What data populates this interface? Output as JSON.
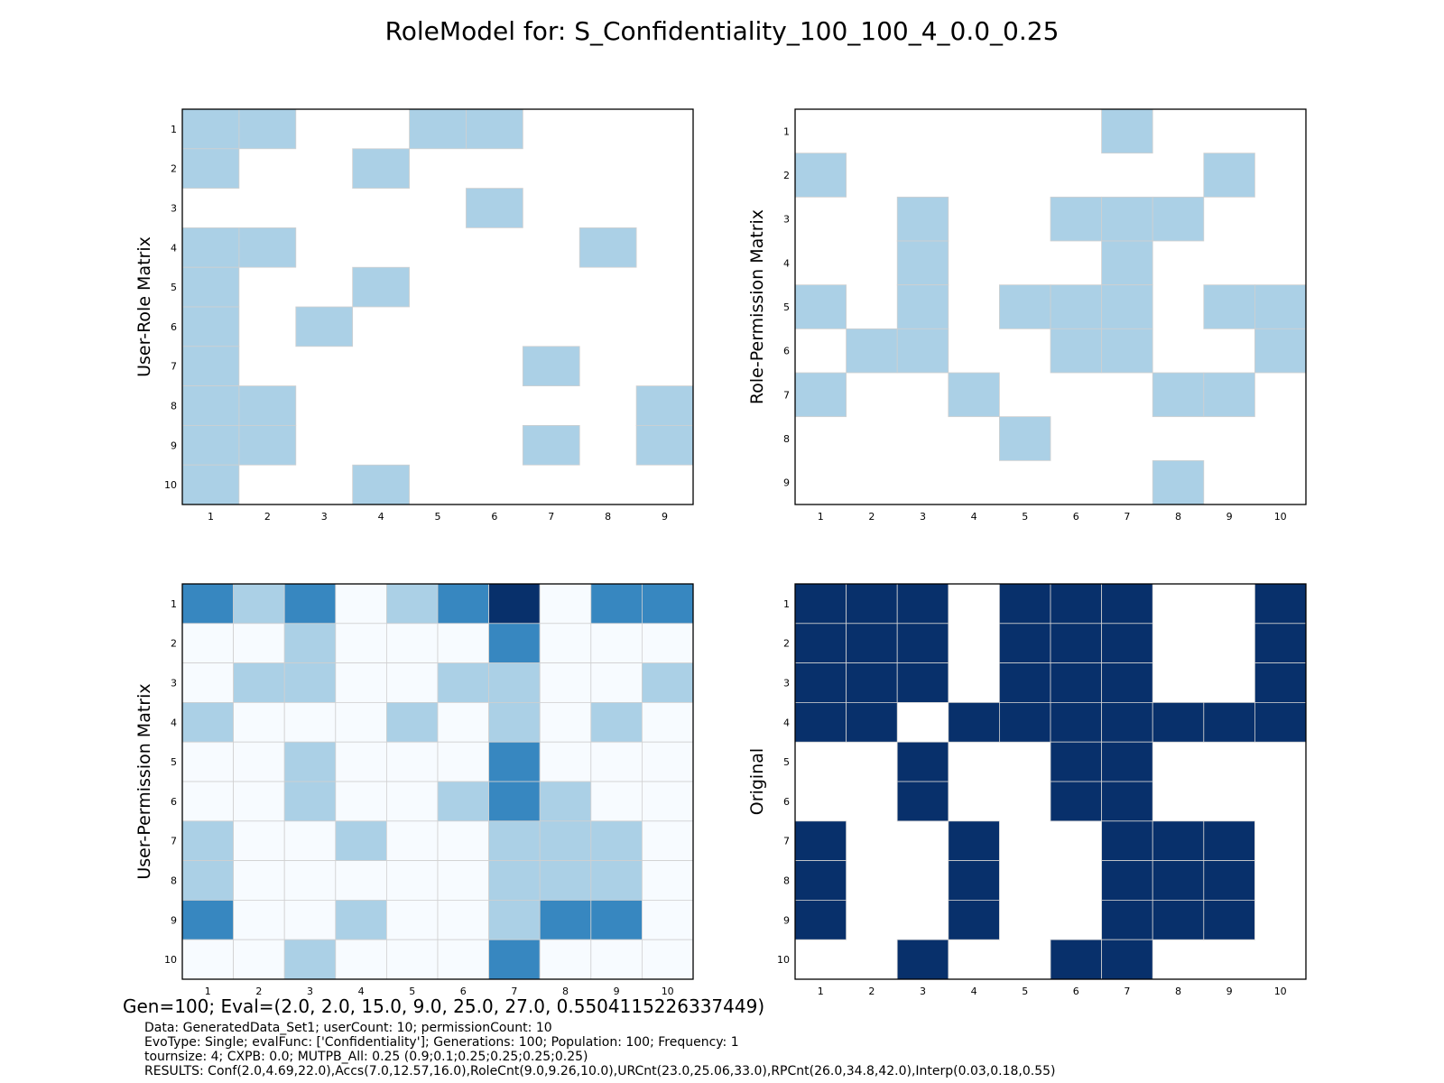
{
  "title": "RoleModel for: S_Confidentiality_100_100_4_0.0_0.25",
  "gen_line": "Gen=100; Eval=(2.0, 2.0, 15.0, 9.0, 25.0, 27.0, 0.5504115226337449)",
  "info_lines": [
    "Data: GeneratedData_Set1; userCount: 10; permissionCount: 10",
    "EvoType: Single; evalFunc: ['Confidentiality']; Generations: 100; Population: 100; Frequency: 1",
    "tournsize: 4; CXPB: 0.0; MUTPB_All: 0.25 (0.9;0.1;0.25;0.25;0.25;0.25)",
    "RESULTS: Conf(2.0,4.69,22.0),Accs(7.0,12.57,16.0),RoleCnt(9.0,9.26,10.0),URCnt(23.0,25.06,33.0),RPCnt(26.0,34.8,42.0),Interp(0.03,0.18,0.55)"
  ],
  "colors": {
    "level0": "#f7fbff",
    "level1": "#abd0e6",
    "level2": "#3787c0",
    "level3": "#08306b",
    "grid": "#d0d0d0"
  },
  "chart_data": [
    {
      "type": "heatmap",
      "ylabel": "User-Role Matrix",
      "x": [
        1,
        2,
        3,
        4,
        5,
        6,
        7,
        8,
        9
      ],
      "y": [
        1,
        2,
        3,
        4,
        5,
        6,
        7,
        8,
        9,
        10
      ],
      "values": [
        [
          1,
          1,
          0,
          0,
          1,
          1,
          0,
          0,
          0
        ],
        [
          1,
          0,
          0,
          1,
          0,
          0,
          0,
          0,
          0
        ],
        [
          0,
          0,
          0,
          0,
          0,
          1,
          0,
          0,
          0
        ],
        [
          1,
          1,
          0,
          0,
          0,
          0,
          0,
          1,
          0
        ],
        [
          1,
          0,
          0,
          1,
          0,
          0,
          0,
          0,
          0
        ],
        [
          1,
          0,
          1,
          0,
          0,
          0,
          0,
          0,
          0
        ],
        [
          1,
          0,
          0,
          0,
          0,
          0,
          1,
          0,
          0
        ],
        [
          1,
          1,
          0,
          0,
          0,
          0,
          0,
          0,
          1
        ],
        [
          1,
          1,
          0,
          0,
          0,
          0,
          1,
          0,
          1
        ],
        [
          1,
          0,
          0,
          1,
          0,
          0,
          0,
          0,
          0
        ]
      ]
    },
    {
      "type": "heatmap",
      "ylabel": "Role-Permission Matrix",
      "x": [
        1,
        2,
        3,
        4,
        5,
        6,
        7,
        8,
        9,
        10
      ],
      "y": [
        1,
        2,
        3,
        4,
        5,
        6,
        7,
        8,
        9
      ],
      "values": [
        [
          0,
          0,
          0,
          0,
          0,
          0,
          1,
          0,
          0,
          0
        ],
        [
          1,
          0,
          0,
          0,
          0,
          0,
          0,
          0,
          1,
          0
        ],
        [
          0,
          0,
          1,
          0,
          0,
          1,
          1,
          1,
          0,
          0
        ],
        [
          0,
          0,
          1,
          0,
          0,
          0,
          1,
          0,
          0,
          0
        ],
        [
          1,
          0,
          1,
          0,
          1,
          1,
          1,
          0,
          1,
          1
        ],
        [
          0,
          1,
          1,
          0,
          0,
          1,
          1,
          0,
          0,
          1
        ],
        [
          1,
          0,
          0,
          1,
          0,
          0,
          0,
          1,
          1,
          0
        ],
        [
          0,
          0,
          0,
          0,
          1,
          0,
          0,
          0,
          0,
          0
        ],
        [
          0,
          0,
          0,
          0,
          0,
          0,
          0,
          1,
          0,
          0
        ]
      ]
    },
    {
      "type": "heatmap",
      "ylabel": "User-Permission Matrix",
      "x": [
        1,
        2,
        3,
        4,
        5,
        6,
        7,
        8,
        9,
        10
      ],
      "y": [
        1,
        2,
        3,
        4,
        5,
        6,
        7,
        8,
        9,
        10
      ],
      "values": [
        [
          2,
          1,
          2,
          0,
          1,
          2,
          3,
          0,
          2,
          2
        ],
        [
          0,
          0,
          1,
          0,
          0,
          0,
          2,
          0,
          0,
          0
        ],
        [
          0,
          1,
          1,
          0,
          0,
          1,
          1,
          0,
          0,
          1
        ],
        [
          1,
          0,
          0,
          0,
          1,
          0,
          1,
          0,
          1,
          0
        ],
        [
          0,
          0,
          1,
          0,
          0,
          0,
          2,
          0,
          0,
          0
        ],
        [
          0,
          0,
          1,
          0,
          0,
          1,
          2,
          1,
          0,
          0
        ],
        [
          1,
          0,
          0,
          1,
          0,
          0,
          1,
          1,
          1,
          0
        ],
        [
          1,
          0,
          0,
          0,
          0,
          0,
          1,
          1,
          1,
          0
        ],
        [
          2,
          0,
          0,
          1,
          0,
          0,
          1,
          2,
          2,
          0
        ],
        [
          0,
          0,
          1,
          0,
          0,
          0,
          2,
          0,
          0,
          0
        ]
      ]
    },
    {
      "type": "heatmap",
      "ylabel": "Original",
      "x": [
        1,
        2,
        3,
        4,
        5,
        6,
        7,
        8,
        9,
        10
      ],
      "y": [
        1,
        2,
        3,
        4,
        5,
        6,
        7,
        8,
        9,
        10
      ],
      "values": [
        [
          3,
          3,
          3,
          0,
          3,
          3,
          3,
          0,
          0,
          3
        ],
        [
          3,
          3,
          3,
          0,
          3,
          3,
          3,
          0,
          0,
          3
        ],
        [
          3,
          3,
          3,
          0,
          3,
          3,
          3,
          0,
          0,
          3
        ],
        [
          3,
          3,
          0,
          3,
          3,
          3,
          3,
          3,
          3,
          3
        ],
        [
          0,
          0,
          3,
          0,
          0,
          3,
          3,
          0,
          0,
          0
        ],
        [
          0,
          0,
          3,
          0,
          0,
          3,
          3,
          0,
          0,
          0
        ],
        [
          3,
          0,
          0,
          3,
          0,
          0,
          3,
          3,
          3,
          0
        ],
        [
          3,
          0,
          0,
          3,
          0,
          0,
          3,
          3,
          3,
          0
        ],
        [
          3,
          0,
          0,
          3,
          0,
          0,
          3,
          3,
          3,
          0
        ],
        [
          0,
          0,
          3,
          0,
          0,
          3,
          3,
          0,
          0,
          0
        ]
      ]
    }
  ]
}
